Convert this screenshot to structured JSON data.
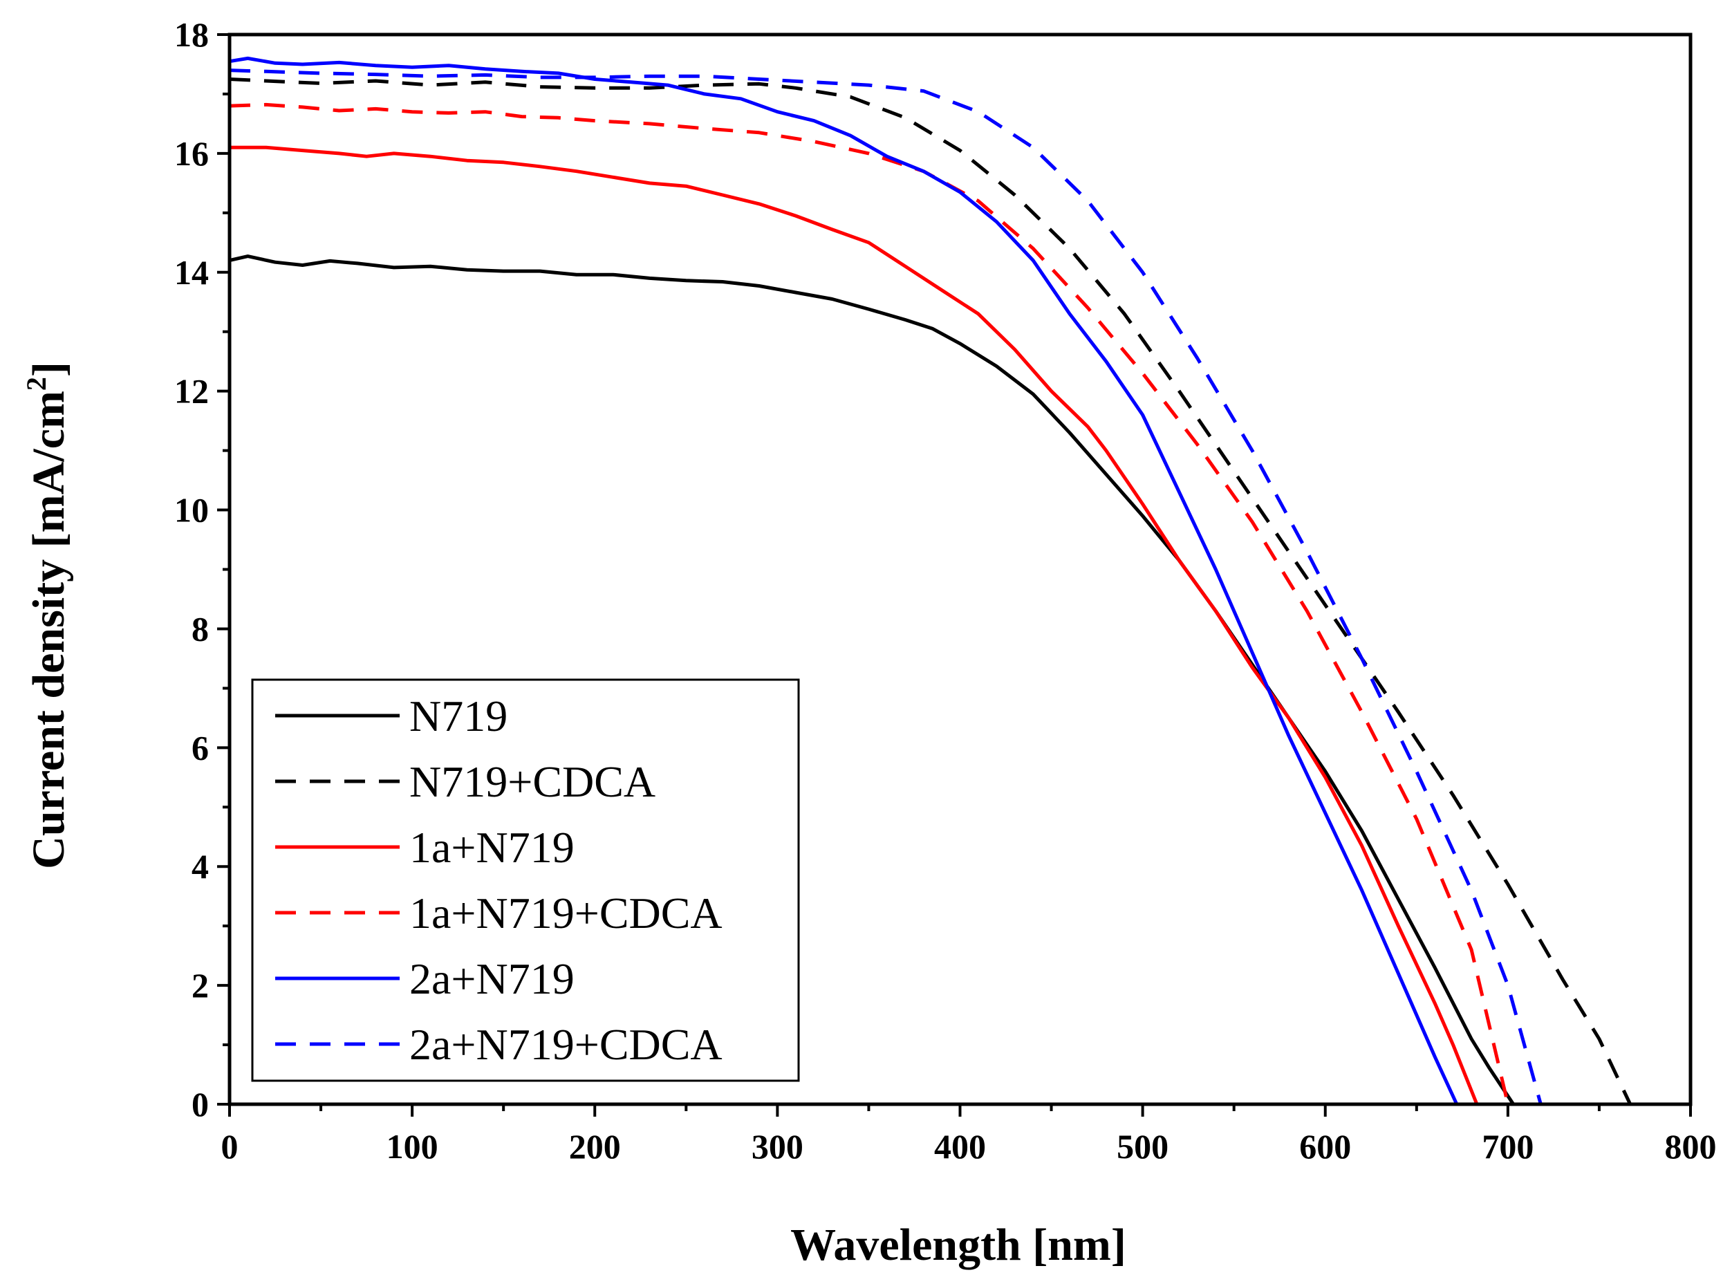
{
  "chart_data": {
    "type": "line",
    "title": "",
    "xlabel": "Wavelength [nm]",
    "ylabel": "Current density [mA/cm",
    "ylabel_superscript": "2",
    "ylabel_suffix": "]",
    "xlim": [
      0,
      800
    ],
    "ylim": [
      0,
      18
    ],
    "xticks": [
      0,
      100,
      200,
      300,
      400,
      500,
      600,
      700,
      800
    ],
    "yticks": [
      0,
      2,
      4,
      6,
      8,
      10,
      12,
      14,
      16,
      18
    ],
    "grid": false,
    "legend_position": "bottom-left",
    "series": [
      {
        "name": "N719",
        "color": "#000000",
        "dash": "solid",
        "x": [
          0,
          10,
          25,
          40,
          55,
          70,
          90,
          110,
          130,
          150,
          170,
          190,
          210,
          230,
          250,
          270,
          290,
          310,
          330,
          350,
          370,
          385,
          400,
          420,
          440,
          460,
          480,
          500,
          520,
          540,
          560,
          580,
          600,
          620,
          640,
          660,
          680,
          690,
          703
        ],
        "y": [
          14.2,
          14.27,
          14.17,
          14.12,
          14.19,
          14.15,
          14.08,
          14.1,
          14.04,
          14.02,
          14.02,
          13.96,
          13.96,
          13.9,
          13.86,
          13.84,
          13.77,
          13.66,
          13.55,
          13.38,
          13.2,
          13.05,
          12.8,
          12.42,
          11.95,
          11.3,
          10.6,
          9.9,
          9.15,
          8.3,
          7.4,
          6.5,
          5.6,
          4.6,
          3.45,
          2.3,
          1.1,
          0.6,
          0
        ]
      },
      {
        "name": "N719+CDCA",
        "color": "#000000",
        "dash": "dashed",
        "x": [
          0,
          20,
          50,
          80,
          110,
          140,
          170,
          200,
          230,
          260,
          290,
          310,
          340,
          370,
          400,
          430,
          460,
          490,
          520,
          550,
          580,
          610,
          640,
          670,
          700,
          730,
          750,
          767
        ],
        "y": [
          17.25,
          17.22,
          17.18,
          17.22,
          17.15,
          17.2,
          17.12,
          17.1,
          17.1,
          17.15,
          17.17,
          17.1,
          16.95,
          16.6,
          16.05,
          15.3,
          14.4,
          13.3,
          12.0,
          10.65,
          9.3,
          7.95,
          6.6,
          5.2,
          3.7,
          2.1,
          1.1,
          0
        ]
      },
      {
        "name": "1a+N719",
        "color": "#ff0000",
        "dash": "solid",
        "x": [
          0,
          20,
          40,
          60,
          75,
          90,
          110,
          130,
          150,
          170,
          190,
          210,
          230,
          250,
          270,
          290,
          310,
          330,
          350,
          370,
          390,
          410,
          430,
          450,
          470,
          480,
          500,
          520,
          540,
          560,
          580,
          600,
          620,
          640,
          660,
          670,
          683
        ],
        "y": [
          16.1,
          16.1,
          16.05,
          16.0,
          15.95,
          16.0,
          15.95,
          15.88,
          15.85,
          15.78,
          15.7,
          15.6,
          15.5,
          15.45,
          15.3,
          15.15,
          14.95,
          14.72,
          14.5,
          14.1,
          13.7,
          13.3,
          12.7,
          12.0,
          11.4,
          11.0,
          10.1,
          9.15,
          8.3,
          7.35,
          6.5,
          5.5,
          4.35,
          3.0,
          1.7,
          1.0,
          0
        ]
      },
      {
        "name": "1a+N719+CDCA",
        "color": "#ff0000",
        "dash": "dashed",
        "x": [
          0,
          20,
          40,
          60,
          80,
          100,
          120,
          140,
          160,
          180,
          200,
          230,
          260,
          290,
          320,
          350,
          380,
          410,
          440,
          470,
          500,
          530,
          560,
          590,
          620,
          650,
          680,
          700
        ],
        "y": [
          16.8,
          16.82,
          16.78,
          16.72,
          16.75,
          16.7,
          16.68,
          16.7,
          16.62,
          16.6,
          16.55,
          16.5,
          16.42,
          16.35,
          16.2,
          16.0,
          15.7,
          15.2,
          14.4,
          13.4,
          12.3,
          11.1,
          9.8,
          8.3,
          6.6,
          4.8,
          2.6,
          0
        ]
      },
      {
        "name": "2a+N719",
        "color": "#0000ff",
        "dash": "solid",
        "x": [
          0,
          10,
          25,
          40,
          60,
          80,
          100,
          120,
          140,
          160,
          180,
          200,
          220,
          240,
          260,
          280,
          300,
          320,
          340,
          360,
          380,
          400,
          420,
          440,
          460,
          480,
          500,
          520,
          540,
          560,
          580,
          600,
          620,
          640,
          660,
          672
        ],
        "y": [
          17.55,
          17.6,
          17.52,
          17.5,
          17.53,
          17.48,
          17.45,
          17.48,
          17.42,
          17.38,
          17.35,
          17.25,
          17.2,
          17.15,
          17.0,
          16.92,
          16.7,
          16.55,
          16.3,
          15.95,
          15.7,
          15.35,
          14.85,
          14.2,
          13.3,
          12.5,
          11.6,
          10.3,
          9.0,
          7.6,
          6.2,
          4.9,
          3.6,
          2.2,
          0.8,
          0
        ]
      },
      {
        "name": "2a+N719+CDCA",
        "color": "#0000ff",
        "dash": "dashed",
        "x": [
          0,
          20,
          50,
          80,
          110,
          140,
          170,
          200,
          230,
          260,
          290,
          320,
          350,
          380,
          410,
          440,
          470,
          500,
          530,
          560,
          590,
          620,
          650,
          680,
          700,
          718
        ],
        "y": [
          17.4,
          17.38,
          17.35,
          17.33,
          17.3,
          17.32,
          17.28,
          17.28,
          17.3,
          17.3,
          17.25,
          17.2,
          17.15,
          17.05,
          16.7,
          16.1,
          15.2,
          14.0,
          12.55,
          11.0,
          9.3,
          7.5,
          5.6,
          3.6,
          2.0,
          0
        ]
      }
    ]
  }
}
